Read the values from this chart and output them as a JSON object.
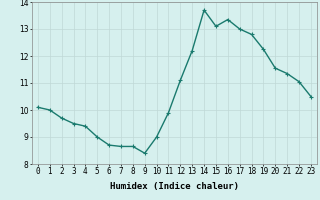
{
  "x": [
    0,
    1,
    2,
    3,
    4,
    5,
    6,
    7,
    8,
    9,
    10,
    11,
    12,
    13,
    14,
    15,
    16,
    17,
    18,
    19,
    20,
    21,
    22,
    23
  ],
  "y": [
    10.1,
    10.0,
    9.7,
    9.5,
    9.4,
    9.0,
    8.7,
    8.65,
    8.65,
    8.4,
    9.0,
    9.9,
    11.1,
    12.2,
    13.7,
    13.1,
    13.35,
    13.0,
    12.8,
    12.25,
    11.55,
    11.35,
    11.05,
    10.5
  ],
  "line_color": "#1a7a6e",
  "marker": "+",
  "bg_color": "#d6f0ee",
  "grid_color": "#c0d8d6",
  "xlabel": "Humidex (Indice chaleur)",
  "xlim": [
    -0.5,
    23.5
  ],
  "ylim": [
    8.0,
    14.0
  ],
  "yticks": [
    8,
    9,
    10,
    11,
    12,
    13,
    14
  ],
  "xtick_labels": [
    "0",
    "1",
    "2",
    "3",
    "4",
    "5",
    "6",
    "7",
    "8",
    "9",
    "10",
    "11",
    "12",
    "13",
    "14",
    "15",
    "16",
    "17",
    "18",
    "19",
    "20",
    "21",
    "22",
    "23"
  ],
  "xlabel_fontsize": 6.5,
  "tick_fontsize": 5.5,
  "line_width": 1.0,
  "marker_size": 3,
  "marker_ew": 0.8
}
